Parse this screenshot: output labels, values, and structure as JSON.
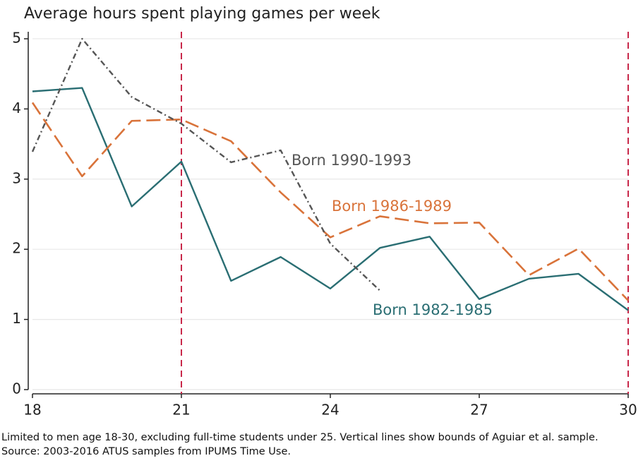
{
  "chart_data": {
    "type": "line",
    "title": "Average hours spent playing games per week",
    "notes": [
      "Limited to men age 18-30, excluding full-time students under 25. Vertical lines show bounds of Aguiar et al. sample.",
      "Source: 2003-2016 ATUS samples from IPUMS Time Use."
    ],
    "x": [
      18,
      19,
      20,
      21,
      22,
      23,
      24,
      25,
      26,
      27,
      28,
      29,
      30
    ],
    "series": [
      {
        "name": "Born 1982-1985",
        "color": "#2a6e73",
        "style": "solid",
        "values": [
          4.25,
          4.3,
          2.61,
          3.25,
          1.55,
          1.89,
          1.44,
          2.02,
          2.18,
          1.29,
          1.58,
          1.65,
          1.13
        ]
      },
      {
        "name": "Born 1986-1989",
        "color": "#d9733a",
        "style": "dashed",
        "values": [
          4.09,
          3.04,
          3.83,
          3.85,
          3.54,
          2.81,
          2.17,
          2.47,
          2.37,
          2.38,
          1.63,
          2.01,
          1.27
        ]
      },
      {
        "name": "Born 1990-1993",
        "color": "#555555",
        "style": "dashdot",
        "values": [
          3.39,
          5.0,
          4.17,
          3.79,
          3.24,
          3.41,
          2.08,
          1.41,
          null,
          null,
          null,
          null,
          null
        ]
      }
    ],
    "vlines": [
      21,
      30
    ],
    "vline_color": "#c8284a",
    "xlim": [
      18,
      30
    ],
    "xticks": [
      18,
      21,
      24,
      27,
      30
    ],
    "ylim": [
      0,
      5.1
    ],
    "yticks": [
      0,
      1,
      2,
      3,
      4,
      5
    ],
    "grid": true
  }
}
